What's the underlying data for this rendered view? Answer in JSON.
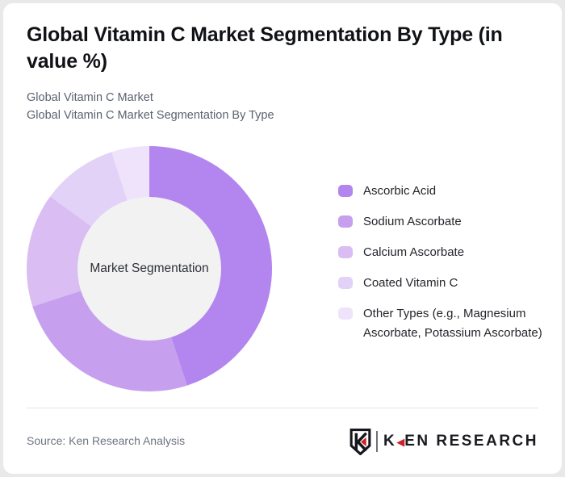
{
  "page": {
    "background_color": "#e9e9e9",
    "card_color": "#ffffff"
  },
  "header": {
    "title": "Global Vitamin C Market Segmentation By Type (in value %)",
    "subtitle_line1": "Global Vitamin C Market",
    "subtitle_line2": "Global Vitamin C Market Segmentation By Type"
  },
  "chart_data": {
    "type": "pie",
    "variant": "donut",
    "title": "Global Vitamin C Market Segmentation By Type (in value %)",
    "center_label": "Market Segmentation",
    "unit": "%",
    "start_angle_deg": 0,
    "direction": "clockwise",
    "legend_position": "right",
    "labels": [
      "Ascorbic Acid",
      "Sodium Ascorbate",
      "Calcium Ascorbate",
      "Coated Vitamin C",
      "Other Types (e.g., Magnesium Ascorbate, Potassium Ascorbate)"
    ],
    "values": [
      45,
      25,
      15,
      10,
      5
    ],
    "colors": [
      "#b286ee",
      "#c6a0ef",
      "#d9bdf3",
      "#e3d2f7",
      "#eee3fb"
    ],
    "hole_color": "#f2f2f3"
  },
  "footer": {
    "source": "Source: Ken Research Analysis",
    "logo": {
      "mark_letter": "K",
      "wordmark_first_letter": "K",
      "wordmark_triangle": "◀",
      "wordmark_rest": "EN RESEARCH",
      "accent_color": "#cf2127",
      "ink_color": "#1a1b20"
    }
  }
}
